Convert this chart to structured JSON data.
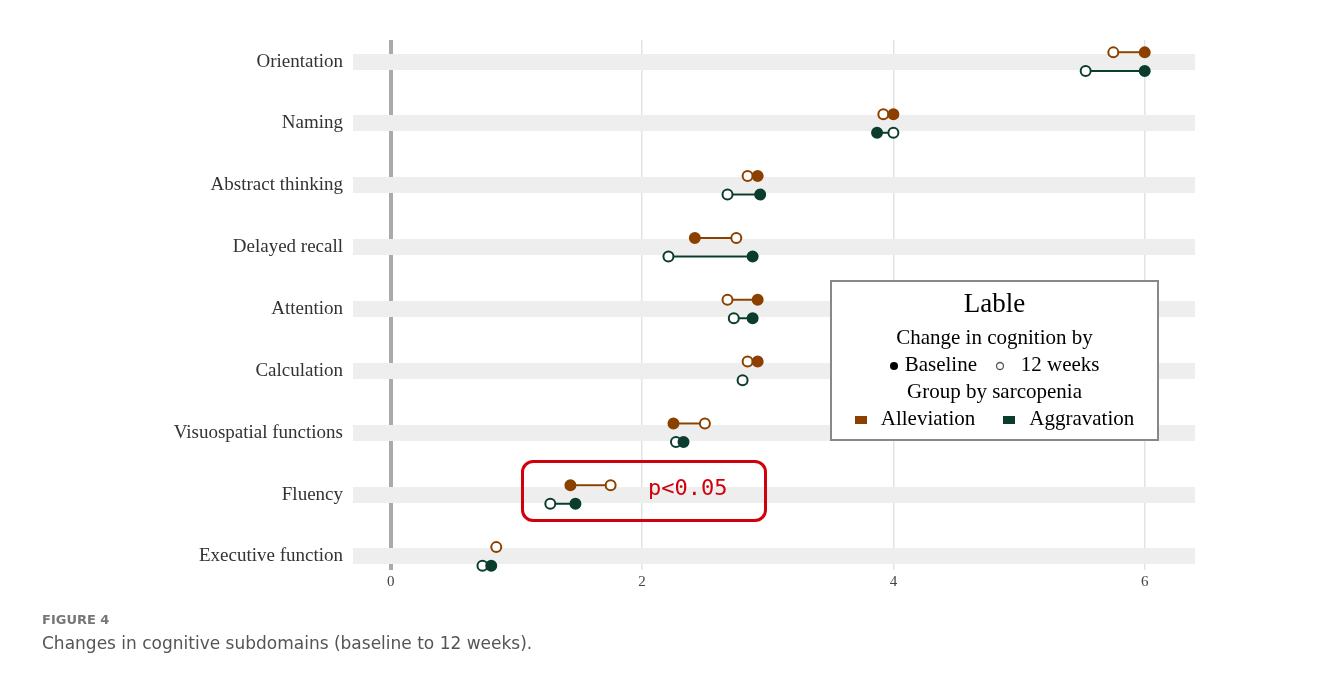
{
  "chart_data": {
    "type": "scatter",
    "orientation": "horizontal",
    "title": "FIGURE 4",
    "subtitle": "Changes in cognitive subdomains (baseline to 12 weeks).",
    "categories": [
      "Orientation",
      "Naming",
      "Abstract thinking",
      "Delayed recall",
      "Attention",
      "Calculation",
      "Visuospatial functions",
      "Fluency",
      "Executive function"
    ],
    "series": [
      {
        "name": "Alleviation",
        "color": "#8b4000",
        "values": [
          6.0,
          4.0,
          2.92,
          2.42,
          2.92,
          2.92,
          2.25,
          1.43,
          null
        ]
      },
      {
        "color": "#8b4000",
        "values": [
          5.75,
          3.92,
          2.84,
          2.75,
          2.68,
          2.84,
          2.5,
          1.75,
          0.84
        ]
      },
      {
        "name": "Aggravation",
        "color": "#0b3d2e",
        "values": [
          6.0,
          3.87,
          2.94,
          2.88,
          2.88,
          null,
          2.33,
          1.47,
          0.8
        ]
      },
      {
        "color": "#0b3d2e",
        "values": [
          5.53,
          4.0,
          2.68,
          2.21,
          2.73,
          2.8,
          2.27,
          1.27,
          0.73
        ]
      }
    ],
    "xlim": [
      -0.3,
      6.4
    ],
    "xticks": [
      0,
      2,
      4,
      6
    ],
    "grid": true,
    "marker": "circle",
    "legend": "right",
    "legend_title": "Lable",
    "annotations": [
      "p<0.05",
      "Change in cognition by",
      "Baseline",
      "12 weeks",
      "Group by sarcopenia"
    ]
  }
}
